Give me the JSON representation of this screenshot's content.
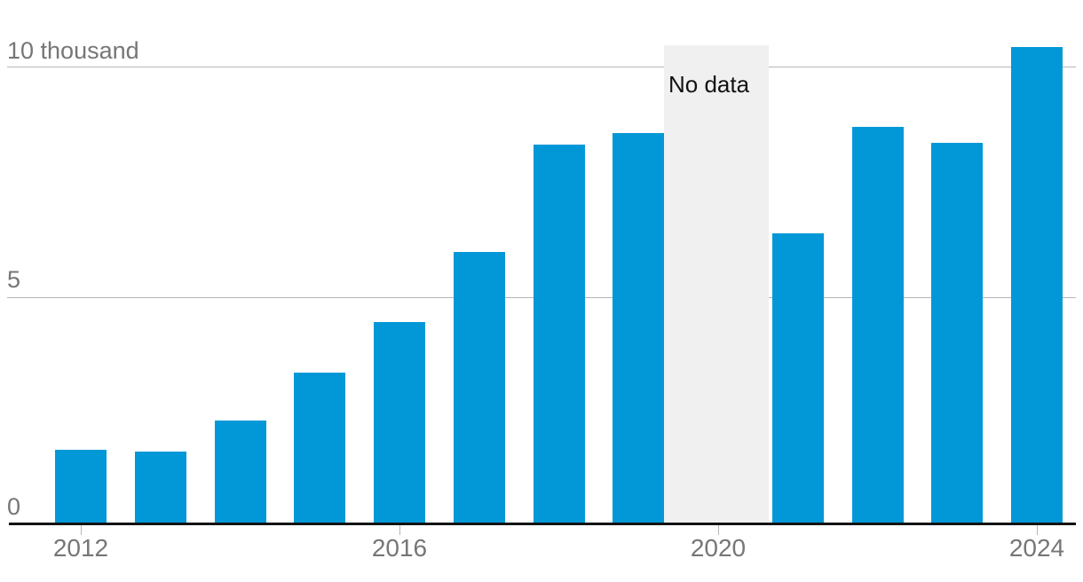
{
  "chart_data": {
    "type": "bar",
    "title": "",
    "unit_note": "values in thousands",
    "categories": [
      2012,
      2013,
      2014,
      2015,
      2016,
      2017,
      2018,
      2019,
      2020,
      2021,
      2022,
      2023,
      2024
    ],
    "values": [
      1.6,
      1.55,
      2.25,
      3.3,
      4.4,
      5.95,
      8.3,
      8.55,
      null,
      6.35,
      8.7,
      8.35,
      10.45
    ],
    "no_data": {
      "year": 2020,
      "label": "No data"
    },
    "y_axis": {
      "min": 0,
      "max": 10,
      "tick_values": [
        0,
        5,
        10
      ],
      "tick_labels": {
        "zero": "0",
        "five": "5",
        "ten": "10 thousand"
      }
    },
    "x_axis": {
      "tick_years": [
        2012,
        2016,
        2020,
        2024
      ],
      "tick_labels": [
        "2012",
        "2016",
        "2020",
        "2024"
      ]
    },
    "grid": "horizontal-lines-at-5-and-10",
    "legend": "none",
    "colors": {
      "bar": "#0298d7",
      "no_data_band": "#f0f0f0",
      "gridline": "#b5b5b5",
      "axis_line": "#121212",
      "axis_label_text": "#767676",
      "no_data_text": "#121212",
      "background": "#ffffff"
    }
  }
}
